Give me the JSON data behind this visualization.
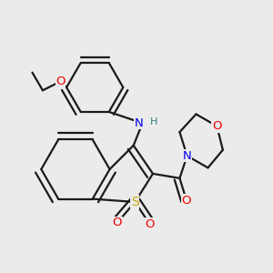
{
  "bg_color": "#ebebeb",
  "bond_color": "#1a1a1a",
  "bond_width": 1.6,
  "atom_colors": {
    "N": "#0000ee",
    "O": "#ee0000",
    "S": "#ccaa00",
    "H": "#408080",
    "C": "#1a1a1a"
  },
  "figsize": [
    3.0,
    3.0
  ],
  "dpi": 100
}
